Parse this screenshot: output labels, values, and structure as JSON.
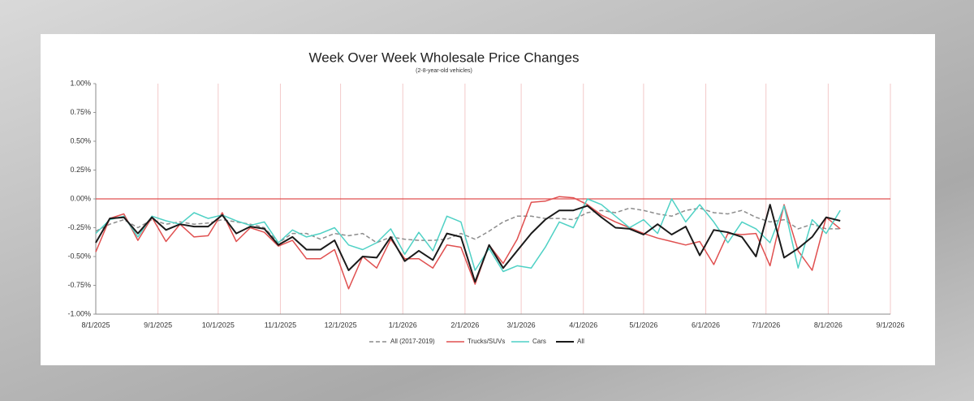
{
  "chart_data": {
    "type": "line",
    "title": "Week Over Week Wholesale Price Changes",
    "subtitle": "(2-8-year-old vehicles)",
    "x": [
      "8/1/2025",
      "8/8/2025",
      "8/15/2025",
      "8/22/2025",
      "8/29/2025",
      "9/5/2025",
      "9/12/2025",
      "9/19/2025",
      "9/26/2025",
      "10/3/2025",
      "10/10/2025",
      "10/17/2025",
      "10/24/2025",
      "10/31/2025",
      "11/7/2025",
      "11/14/2025",
      "11/21/2025",
      "11/28/2025",
      "12/5/2025",
      "12/12/2025",
      "12/19/2025",
      "12/26/2025",
      "1/2/2026",
      "1/9/2026",
      "1/16/2026",
      "1/23/2026",
      "1/30/2026",
      "2/6/2026",
      "2/13/2026",
      "2/20/2026",
      "2/27/2026",
      "3/6/2026",
      "3/13/2026",
      "3/20/2026",
      "3/27/2026",
      "4/3/2026",
      "4/10/2026",
      "4/17/2026",
      "4/24/2026",
      "5/1/2026",
      "5/8/2026",
      "5/15/2026",
      "5/22/2026",
      "5/29/2026",
      "6/5/2026",
      "6/12/2026",
      "6/19/2026",
      "6/26/2026",
      "7/3/2026",
      "7/10/2026",
      "7/17/2026",
      "7/24/2026",
      "7/31/2026",
      "8/7/2026"
    ],
    "series": [
      {
        "name": "All (2017-2019)",
        "color": "#8c8c8c",
        "dash": true,
        "values": [
          -0.28,
          -0.22,
          -0.18,
          -0.25,
          -0.18,
          -0.22,
          -0.2,
          -0.22,
          -0.21,
          -0.18,
          -0.2,
          -0.22,
          -0.25,
          -0.38,
          -0.3,
          -0.3,
          -0.35,
          -0.3,
          -0.32,
          -0.3,
          -0.38,
          -0.33,
          -0.35,
          -0.36,
          -0.36,
          -0.35,
          -0.3,
          -0.35,
          -0.28,
          -0.2,
          -0.15,
          -0.15,
          -0.17,
          -0.17,
          -0.18,
          -0.12,
          -0.1,
          -0.12,
          -0.08,
          -0.1,
          -0.13,
          -0.15,
          -0.1,
          -0.08,
          -0.12,
          -0.13,
          -0.1,
          -0.16,
          -0.2,
          -0.18,
          -0.26,
          -0.22,
          -0.26,
          -0.26
        ]
      },
      {
        "name": "Trucks/SUVs",
        "color": "#e05050",
        "values": [
          -0.46,
          -0.17,
          -0.13,
          -0.36,
          -0.16,
          -0.37,
          -0.22,
          -0.33,
          -0.32,
          -0.12,
          -0.37,
          -0.25,
          -0.29,
          -0.41,
          -0.36,
          -0.52,
          -0.52,
          -0.44,
          -0.78,
          -0.5,
          -0.6,
          -0.35,
          -0.52,
          -0.52,
          -0.6,
          -0.4,
          -0.42,
          -0.74,
          -0.4,
          -0.56,
          -0.35,
          -0.03,
          -0.02,
          0.02,
          0.01,
          -0.05,
          -0.14,
          -0.2,
          -0.25,
          -0.3,
          -0.34,
          -0.37,
          -0.4,
          -0.37,
          -0.57,
          -0.3,
          -0.31,
          -0.3,
          -0.58,
          -0.05,
          -0.45,
          -0.62,
          -0.16,
          -0.26
        ]
      },
      {
        "name": "Cars",
        "color": "#4fd1c5",
        "values": [
          -0.3,
          -0.18,
          -0.15,
          -0.33,
          -0.15,
          -0.19,
          -0.22,
          -0.12,
          -0.17,
          -0.14,
          -0.19,
          -0.23,
          -0.2,
          -0.38,
          -0.27,
          -0.33,
          -0.3,
          -0.25,
          -0.4,
          -0.44,
          -0.38,
          -0.26,
          -0.48,
          -0.29,
          -0.45,
          -0.15,
          -0.2,
          -0.62,
          -0.43,
          -0.63,
          -0.58,
          -0.6,
          -0.42,
          -0.2,
          -0.25,
          0.0,
          -0.05,
          -0.15,
          -0.25,
          -0.18,
          -0.3,
          0.0,
          -0.2,
          -0.05,
          -0.2,
          -0.38,
          -0.2,
          -0.26,
          -0.38,
          -0.06,
          -0.6,
          -0.18,
          -0.3,
          -0.1
        ]
      },
      {
        "name": "All",
        "color": "#1a1a1a",
        "width": 2,
        "values": [
          -0.38,
          -0.17,
          -0.16,
          -0.3,
          -0.16,
          -0.27,
          -0.22,
          -0.24,
          -0.24,
          -0.14,
          -0.3,
          -0.24,
          -0.26,
          -0.4,
          -0.33,
          -0.44,
          -0.44,
          -0.36,
          -0.62,
          -0.5,
          -0.51,
          -0.33,
          -0.54,
          -0.45,
          -0.53,
          -0.3,
          -0.33,
          -0.72,
          -0.4,
          -0.6,
          -0.45,
          -0.3,
          -0.18,
          -0.1,
          -0.1,
          -0.06,
          -0.16,
          -0.25,
          -0.26,
          -0.31,
          -0.22,
          -0.31,
          -0.24,
          -0.49,
          -0.27,
          -0.29,
          -0.33,
          -0.5,
          -0.05,
          -0.51,
          -0.43,
          -0.33,
          -0.16,
          -0.19
        ]
      }
    ],
    "xlim": [
      "8/1/2025",
      "9/1/2026"
    ],
    "xticks": [
      "8/1/2025",
      "9/1/2025",
      "10/1/2025",
      "11/1/2025",
      "12/1/2025",
      "1/1/2026",
      "2/1/2026",
      "3/1/2026",
      "4/1/2026",
      "5/1/2026",
      "6/1/2026",
      "7/1/2026",
      "8/1/2026",
      "9/1/2026"
    ],
    "ylim": [
      -1,
      1
    ],
    "yticks": [
      {
        "value": 1,
        "label": "1.00%"
      },
      {
        "value": 0.75,
        "label": "0.75%"
      },
      {
        "value": 0.5,
        "label": "0.50%"
      },
      {
        "value": 0.25,
        "label": "0.25%"
      },
      {
        "value": 0,
        "label": "0.00%"
      },
      {
        "value": -0.25,
        "label": "-0.25%"
      },
      {
        "value": -0.5,
        "label": "-0.50%"
      },
      {
        "value": -0.75,
        "label": "-0.75%"
      },
      {
        "value": -1,
        "label": "-1.00%"
      }
    ],
    "grid_color": "#f3c9c9",
    "zero_line": {
      "value": 0,
      "color": "#e05050"
    },
    "legend": "bottom"
  }
}
